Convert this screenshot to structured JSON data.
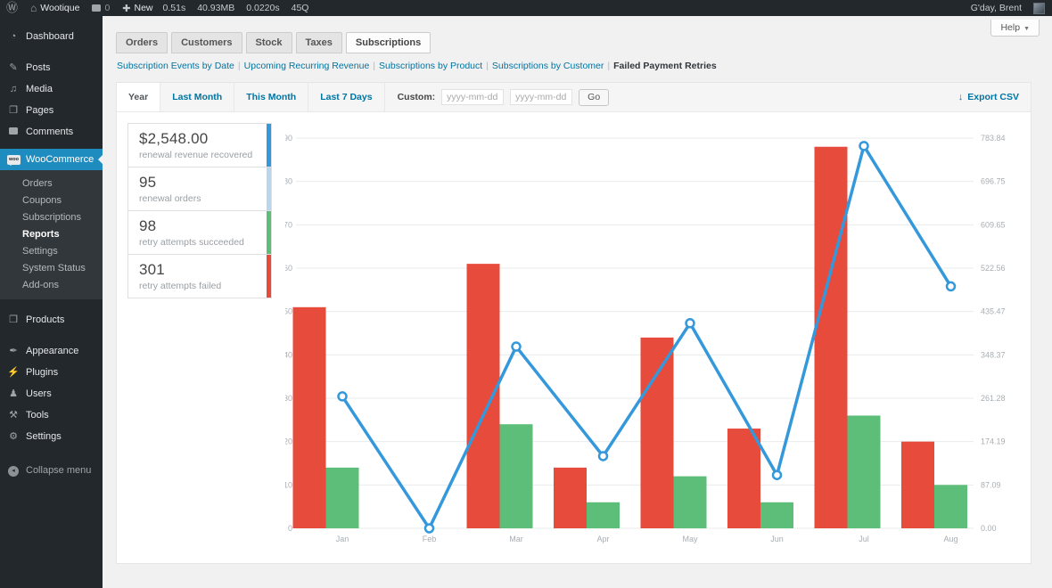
{
  "admin_bar": {
    "site_name": "Wootique",
    "comment_count": "0",
    "new_label": "New",
    "stats": [
      "0.51s",
      "40.93MB",
      "0.0220s",
      "45Q"
    ],
    "greeting": "G'day, Brent"
  },
  "help_label": "Help",
  "sidebar": {
    "items": [
      {
        "label": "Dashboard",
        "glyph": "◔"
      },
      {
        "label": "Posts",
        "glyph": "✎"
      },
      {
        "label": "Media",
        "glyph": "♫"
      },
      {
        "label": "Pages",
        "glyph": "❐"
      },
      {
        "label": "Comments",
        "glyph": ""
      },
      {
        "label": "WooCommerce",
        "glyph": "woo"
      },
      {
        "label": "Products",
        "glyph": "❒"
      },
      {
        "label": "Appearance",
        "glyph": "✒"
      },
      {
        "label": "Plugins",
        "glyph": "⚡"
      },
      {
        "label": "Users",
        "glyph": "♟"
      },
      {
        "label": "Tools",
        "glyph": "⚒"
      },
      {
        "label": "Settings",
        "glyph": "⚙"
      },
      {
        "label": "Collapse menu",
        "glyph": "◂"
      }
    ],
    "woocommerce_submenu": [
      {
        "label": "Orders"
      },
      {
        "label": "Coupons"
      },
      {
        "label": "Subscriptions"
      },
      {
        "label": "Reports",
        "active": true
      },
      {
        "label": "Settings"
      },
      {
        "label": "System Status"
      },
      {
        "label": "Add-ons"
      }
    ]
  },
  "report_tabs": [
    {
      "label": "Orders"
    },
    {
      "label": "Customers"
    },
    {
      "label": "Stock"
    },
    {
      "label": "Taxes"
    },
    {
      "label": "Subscriptions",
      "active": true
    }
  ],
  "report_links": [
    {
      "label": "Subscription Events by Date"
    },
    {
      "label": "Upcoming Recurring Revenue"
    },
    {
      "label": "Subscriptions by Product"
    },
    {
      "label": "Subscriptions by Customer"
    },
    {
      "label": "Failed Payment Retries",
      "active": true
    }
  ],
  "range_bar": {
    "tabs": [
      {
        "label": "Year",
        "active": true
      },
      {
        "label": "Last Month"
      },
      {
        "label": "This Month"
      },
      {
        "label": "Last 7 Days"
      }
    ],
    "custom_label": "Custom:",
    "date_placeholder": "yyyy-mm-dd",
    "go_label": "Go",
    "export_label": "Export CSV",
    "export_arrow": "↓"
  },
  "legend": [
    {
      "value": "$2,548.00",
      "label": "renewal revenue recovered",
      "color": "#3498db"
    },
    {
      "value": "95",
      "label": "renewal orders",
      "color": "#b8d7ee"
    },
    {
      "value": "98",
      "label": "retry attempts succeeded",
      "color": "#5cbe78"
    },
    {
      "value": "301",
      "label": "retry attempts failed",
      "color": "#e74b3c"
    }
  ],
  "chart_data": {
    "type": "combo",
    "categories": [
      "Jan",
      "Feb",
      "Mar",
      "Apr",
      "May",
      "Jun",
      "Jul",
      "Aug"
    ],
    "series": [
      {
        "name": "retry attempts failed",
        "type": "bar",
        "axis": "left",
        "color": "#e74b3c",
        "values": [
          51,
          0,
          61,
          14,
          44,
          23,
          88,
          20
        ]
      },
      {
        "name": "retry attempts succeeded",
        "type": "bar",
        "axis": "left",
        "color": "#5cbe78",
        "values": [
          14,
          0,
          24,
          6,
          12,
          6,
          26,
          10
        ]
      },
      {
        "name": "renewal revenue recovered",
        "type": "line",
        "axis": "right",
        "color": "#3498db",
        "values": [
          265,
          0,
          365,
          145,
          412,
          107,
          768,
          486
        ]
      }
    ],
    "left_axis": {
      "min": 0,
      "max": 90,
      "ticks": [
        0,
        10,
        20,
        30,
        40,
        50,
        60,
        70,
        80,
        90
      ]
    },
    "right_axis": {
      "min": 0,
      "max": 783.84,
      "ticks": [
        "0.00",
        "87.09",
        "174.19",
        "261.28",
        "348.37",
        "435.47",
        "522.56",
        "609.65",
        "696.75",
        "783.84"
      ]
    },
    "grid": true,
    "legend_position": "none"
  }
}
